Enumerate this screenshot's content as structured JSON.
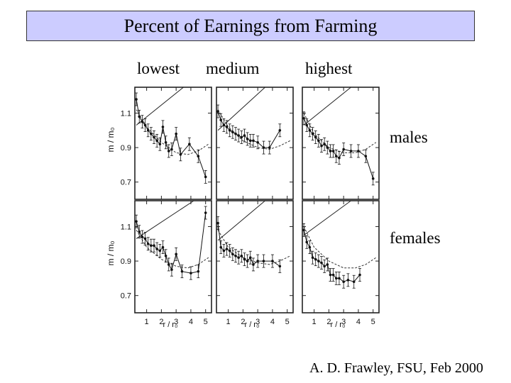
{
  "title": "Percent of Earnings from Farming",
  "column_labels": [
    "lowest",
    "medium",
    "highest"
  ],
  "row_labels": [
    "males",
    "females"
  ],
  "credit": "A. D. Frawley, FSU, Feb 2000",
  "chart_data": {
    "type": "line",
    "grid": false,
    "ylabel": "m / m₀",
    "xlabel": "r / r₀",
    "xticks": [
      "1",
      "2",
      "3",
      "4",
      "5"
    ],
    "yticks": [
      "0.7",
      "0.9",
      "1.1"
    ],
    "xlim": [
      0.2,
      5.4
    ],
    "ylim": [
      0.6,
      1.25
    ],
    "panels": [
      {
        "column": "lowest",
        "row": "males",
        "points": [
          [
            0.3,
            1.18
          ],
          [
            0.5,
            1.08
          ],
          [
            0.7,
            1.05
          ],
          [
            0.9,
            1.03
          ],
          [
            1.1,
            1.0
          ],
          [
            1.3,
            0.98
          ],
          [
            1.5,
            0.96
          ],
          [
            1.7,
            0.94
          ],
          [
            1.9,
            0.92
          ],
          [
            2.1,
            1.02
          ],
          [
            2.3,
            0.93
          ],
          [
            2.5,
            0.88
          ],
          [
            2.7,
            0.89
          ],
          [
            3.0,
            0.98
          ],
          [
            3.3,
            0.86
          ],
          [
            3.9,
            0.92
          ],
          [
            4.5,
            0.85
          ],
          [
            5.0,
            0.73
          ]
        ],
        "fit": [
          [
            0.3,
            1.12
          ],
          [
            1.0,
            1.02
          ],
          [
            2.0,
            0.93
          ],
          [
            3.0,
            0.87
          ],
          [
            3.8,
            0.86
          ],
          [
            4.5,
            0.88
          ],
          [
            5.2,
            0.92
          ]
        ],
        "reference": [
          [
            0.3,
            1.03
          ],
          [
            3.5,
            1.25
          ]
        ]
      },
      {
        "column": "medium",
        "row": "males",
        "points": [
          [
            0.3,
            1.11
          ],
          [
            0.5,
            1.06
          ],
          [
            0.7,
            1.03
          ],
          [
            0.9,
            1.02
          ],
          [
            1.1,
            1.0
          ],
          [
            1.3,
            0.99
          ],
          [
            1.5,
            0.98
          ],
          [
            1.7,
            0.97
          ],
          [
            1.9,
            0.96
          ],
          [
            2.1,
            0.97
          ],
          [
            2.3,
            0.95
          ],
          [
            2.5,
            0.94
          ],
          [
            2.7,
            0.94
          ],
          [
            3.0,
            0.93
          ],
          [
            3.4,
            0.9
          ],
          [
            3.8,
            0.9
          ],
          [
            4.5,
            1.0
          ]
        ],
        "fit": [
          [
            0.3,
            1.12
          ],
          [
            1.0,
            1.02
          ],
          [
            2.0,
            0.94
          ],
          [
            3.0,
            0.9
          ],
          [
            3.8,
            0.89
          ],
          [
            4.5,
            0.91
          ],
          [
            5.2,
            0.94
          ]
        ],
        "reference": [
          [
            0.3,
            1.0
          ],
          [
            3.5,
            1.25
          ]
        ]
      },
      {
        "column": "highest",
        "row": "males",
        "points": [
          [
            0.3,
            1.07
          ],
          [
            0.5,
            1.03
          ],
          [
            0.7,
            1.0
          ],
          [
            0.9,
            0.98
          ],
          [
            1.1,
            0.96
          ],
          [
            1.3,
            0.94
          ],
          [
            1.5,
            0.91
          ],
          [
            1.7,
            0.92
          ],
          [
            1.9,
            0.9
          ],
          [
            2.1,
            0.88
          ],
          [
            2.3,
            0.88
          ],
          [
            2.5,
            0.85
          ],
          [
            2.7,
            0.84
          ],
          [
            3.0,
            0.89
          ],
          [
            3.5,
            0.88
          ],
          [
            4.0,
            0.88
          ],
          [
            4.5,
            0.85
          ],
          [
            5.0,
            0.72
          ]
        ],
        "fit": [
          [
            0.3,
            1.1
          ],
          [
            1.0,
            0.98
          ],
          [
            2.0,
            0.9
          ],
          [
            3.0,
            0.87
          ],
          [
            3.8,
            0.87
          ],
          [
            4.5,
            0.89
          ],
          [
            5.2,
            0.93
          ]
        ],
        "reference": [
          [
            0.3,
            1.03
          ],
          [
            3.5,
            1.25
          ]
        ]
      },
      {
        "column": "lowest",
        "row": "females",
        "points": [
          [
            0.3,
            1.13
          ],
          [
            0.5,
            1.07
          ],
          [
            0.7,
            1.04
          ],
          [
            0.9,
            1.03
          ],
          [
            1.1,
            1.0
          ],
          [
            1.3,
            0.99
          ],
          [
            1.5,
            0.99
          ],
          [
            1.7,
            0.97
          ],
          [
            1.9,
            0.96
          ],
          [
            2.1,
            0.98
          ],
          [
            2.3,
            0.93
          ],
          [
            2.5,
            0.88
          ],
          [
            2.7,
            0.85
          ],
          [
            3.0,
            0.94
          ],
          [
            3.4,
            0.84
          ],
          [
            4.0,
            0.83
          ],
          [
            4.5,
            0.84
          ],
          [
            5.0,
            1.18
          ]
        ],
        "fit": [
          [
            0.3,
            1.08
          ],
          [
            1.0,
            0.98
          ],
          [
            2.0,
            0.91
          ],
          [
            3.0,
            0.87
          ],
          [
            3.8,
            0.86
          ],
          [
            4.5,
            0.88
          ],
          [
            5.2,
            0.92
          ]
        ],
        "reference": [
          [
            0.3,
            1.03
          ],
          [
            4.2,
            1.25
          ]
        ]
      },
      {
        "column": "medium",
        "row": "females",
        "points": [
          [
            0.3,
            1.12
          ],
          [
            0.5,
            0.98
          ],
          [
            0.7,
            0.96
          ],
          [
            0.9,
            0.97
          ],
          [
            1.1,
            0.96
          ],
          [
            1.3,
            0.94
          ],
          [
            1.5,
            0.93
          ],
          [
            1.7,
            0.92
          ],
          [
            1.9,
            0.93
          ],
          [
            2.1,
            0.91
          ],
          [
            2.3,
            0.9
          ],
          [
            2.5,
            0.92
          ],
          [
            2.7,
            0.88
          ],
          [
            3.0,
            0.9
          ],
          [
            3.4,
            0.9
          ],
          [
            4.0,
            0.9
          ],
          [
            4.5,
            0.87
          ]
        ],
        "fit": [
          [
            0.3,
            1.08
          ],
          [
            1.0,
            0.98
          ],
          [
            2.0,
            0.92
          ],
          [
            3.0,
            0.89
          ],
          [
            3.8,
            0.88
          ],
          [
            4.5,
            0.9
          ],
          [
            5.2,
            0.93
          ]
        ],
        "reference": [
          [
            0.3,
            1.02
          ],
          [
            3.5,
            1.25
          ]
        ]
      },
      {
        "column": "highest",
        "row": "females",
        "points": [
          [
            0.3,
            1.08
          ],
          [
            0.5,
            1.01
          ],
          [
            0.7,
            0.98
          ],
          [
            0.9,
            0.92
          ],
          [
            1.1,
            0.91
          ],
          [
            1.3,
            0.9
          ],
          [
            1.5,
            0.89
          ],
          [
            1.7,
            0.87
          ],
          [
            1.9,
            0.88
          ],
          [
            2.1,
            0.82
          ],
          [
            2.3,
            0.82
          ],
          [
            2.5,
            0.8
          ],
          [
            2.7,
            0.8
          ],
          [
            3.0,
            0.78
          ],
          [
            3.3,
            0.79
          ],
          [
            3.7,
            0.78
          ],
          [
            4.1,
            0.82
          ]
        ],
        "fit": [
          [
            0.3,
            1.1
          ],
          [
            1.0,
            0.98
          ],
          [
            2.0,
            0.9
          ],
          [
            3.0,
            0.86
          ],
          [
            3.8,
            0.86
          ],
          [
            4.5,
            0.88
          ],
          [
            5.2,
            0.92
          ]
        ],
        "reference": [
          [
            0.3,
            1.05
          ],
          [
            3.5,
            1.25
          ]
        ]
      }
    ]
  }
}
